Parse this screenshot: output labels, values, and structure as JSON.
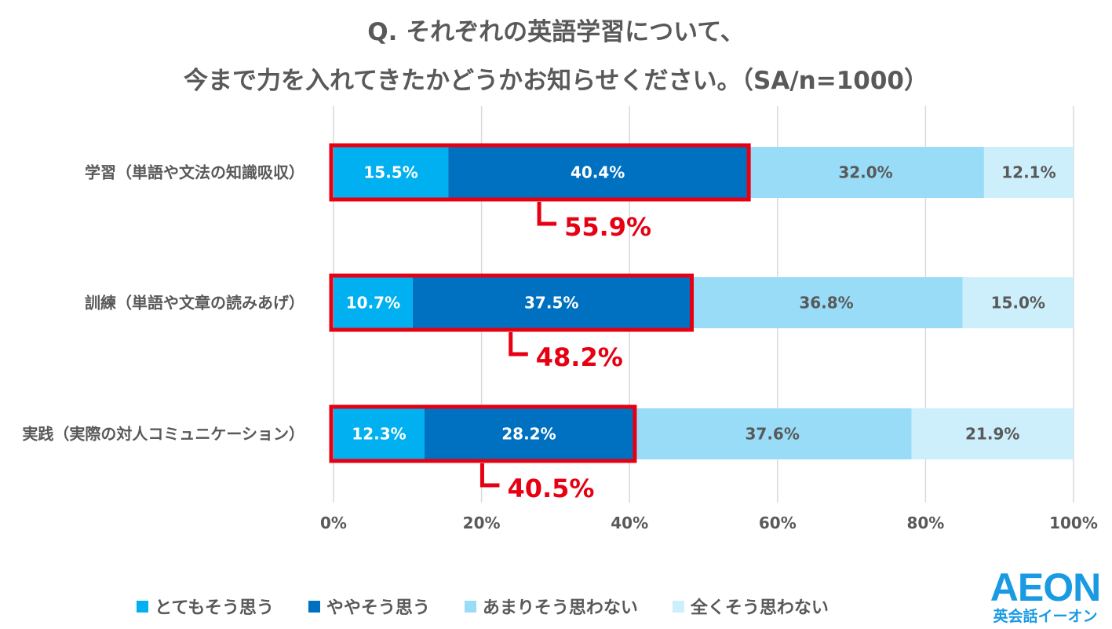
{
  "title": {
    "line1": "Q. それぞれの英語学習について、",
    "line2": "今まで力を入れてきたかどうかお知らせください。（SA/n=1000）"
  },
  "chart_data": {
    "type": "bar",
    "orientation": "horizontal",
    "stacked": true,
    "categories": [
      "学習（単語や文法の知識吸収）",
      "訓練（単語や文章の読みあげ）",
      "実践（実際の対人コミュニケーション）"
    ],
    "series": [
      {
        "name": "とてもそう思う",
        "color": "#00b0f0",
        "values": [
          15.5,
          10.7,
          12.3
        ]
      },
      {
        "name": "ややそう思う",
        "color": "#0070c0",
        "values": [
          40.4,
          37.5,
          28.2
        ]
      },
      {
        "name": "あまりそう思わない",
        "color": "#99dcf7",
        "values": [
          32.0,
          36.8,
          37.6
        ]
      },
      {
        "name": "全くそう思わない",
        "color": "#cdeefb",
        "values": [
          12.1,
          15.0,
          21.9
        ]
      }
    ],
    "data_labels": [
      [
        "15.5%",
        "40.4%",
        "32.0%",
        "12.1%"
      ],
      [
        "10.7%",
        "37.5%",
        "36.8%",
        "15.0%"
      ],
      [
        "12.3%",
        "28.2%",
        "37.6%",
        "21.9%"
      ]
    ],
    "highlight_totals": [
      "55.9%",
      "48.2%",
      "40.5%"
    ],
    "highlight_values": [
      55.9,
      48.2,
      40.5
    ],
    "xlim": [
      0,
      100
    ],
    "xticks": [
      "0%",
      "20%",
      "40%",
      "60%",
      "80%",
      "100%"
    ],
    "grid": true,
    "legend_position": "bottom",
    "highlight_color": "#e60012",
    "grid_color": "#d9d9d9",
    "label_color": "#595959"
  },
  "logo": {
    "mark": "AEON",
    "subtitle": "英会話イーオン"
  }
}
